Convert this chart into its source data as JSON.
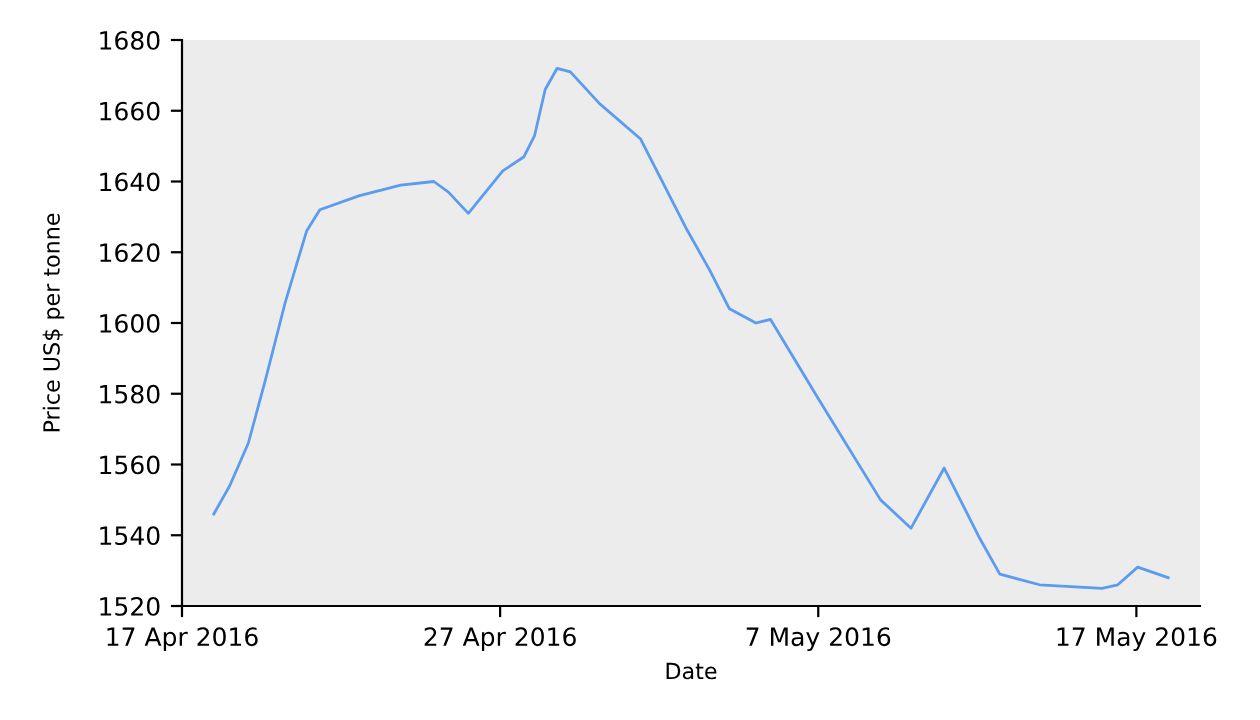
{
  "chart_data": {
    "type": "line",
    "xlabel": "Date",
    "ylabel": "Price US$ per tonne",
    "x": [
      "2016-04-18T00:00",
      "2016-04-18T12:00",
      "2016-04-19T02:00",
      "2016-04-19T15:00",
      "2016-04-20T06:00",
      "2016-04-20T22:00",
      "2016-04-21T08:00",
      "2016-04-22T14:00",
      "2016-04-23T21:00",
      "2016-04-24T22:00",
      "2016-04-25T09:00",
      "2016-04-26T00:00",
      "2016-04-26T13:00",
      "2016-04-27T02:00",
      "2016-04-27T18:00",
      "2016-04-28T02:00",
      "2016-04-28T10:00",
      "2016-04-28T19:00",
      "2016-04-29T05:00",
      "2016-04-30T03:00",
      "2016-05-01T10:00",
      "2016-05-02T20:00",
      "2016-05-03T14:00",
      "2016-05-04T05:00",
      "2016-05-05T01:00",
      "2016-05-05T12:00",
      "2016-05-07T01:00",
      "2016-05-08T23:00",
      "2016-05-09T22:00",
      "2016-05-10T23:00",
      "2016-05-12T02:00",
      "2016-05-12T17:00",
      "2016-05-13T23:00",
      "2016-05-15T22:00",
      "2016-05-16T10:00",
      "2016-05-17T01:00",
      "2016-05-18T00:00"
    ],
    "series": [
      {
        "color": "#5b9bf0",
        "values": [
          1546,
          1554,
          1566,
          1584,
          1606,
          1626,
          1632,
          1636,
          1639,
          1640,
          1637,
          1631,
          1637,
          1643,
          1647,
          1653,
          1666,
          1672,
          1671,
          1662,
          1652,
          1627,
          1615,
          1604,
          1600,
          1601,
          1578,
          1550,
          1542,
          1559,
          1539,
          1529,
          1526,
          1525,
          1526,
          1531,
          1528
        ]
      }
    ],
    "xlim": [
      "2016-04-17",
      "2016-05-19"
    ],
    "xticks": [
      {
        "value": "2016-04-17",
        "label": "17 Apr 2016"
      },
      {
        "value": "2016-04-27",
        "label": "27 Apr 2016"
      },
      {
        "value": "2016-05-07",
        "label": "7 May 2016"
      },
      {
        "value": "2016-05-17",
        "label": "17 May 2016"
      }
    ],
    "ylim": [
      1520,
      1680
    ],
    "yticks": [
      1520,
      1540,
      1560,
      1580,
      1600,
      1620,
      1640,
      1660,
      1680
    ],
    "grid": false,
    "legend": false,
    "marker": "none",
    "line_style": "solid"
  }
}
